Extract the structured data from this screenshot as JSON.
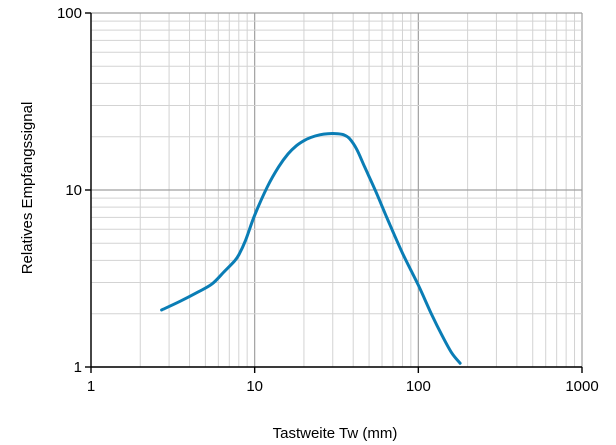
{
  "chart_data": {
    "type": "line",
    "title": "",
    "xlabel": "Tastweite Tw (mm)",
    "ylabel": "Relatives Empfangssignal",
    "x_scale": "log",
    "y_scale": "log",
    "xlim": [
      1,
      1000
    ],
    "ylim": [
      1,
      100
    ],
    "x_ticks": [
      {
        "value": 1,
        "label": "1"
      },
      {
        "value": 10,
        "label": "10"
      },
      {
        "value": 100,
        "label": "100"
      },
      {
        "value": 1000,
        "label": "1000"
      }
    ],
    "y_ticks": [
      {
        "value": 1,
        "label": "1"
      },
      {
        "value": 10,
        "label": "10"
      },
      {
        "value": 100,
        "label": "100"
      }
    ],
    "grid": true,
    "legend": "none",
    "colors": {
      "line": "#0a7db5",
      "grid_minor": "#d3d3d3",
      "grid_major": "#a0a0a0",
      "axis": "#000000"
    },
    "series": [
      {
        "x": [
          2.7,
          3.5,
          4.5,
          5.5,
          6.5,
          7.5,
          8.0,
          8.8,
          10,
          12,
          14,
          16,
          18,
          20,
          22,
          25,
          28,
          32,
          35,
          38,
          42,
          47,
          55,
          65,
          80,
          100,
          120,
          140,
          160,
          180
        ],
        "y": [
          2.1,
          2.35,
          2.65,
          2.95,
          3.45,
          3.95,
          4.3,
          5.2,
          7.2,
          10.5,
          13.5,
          16.0,
          17.8,
          19.0,
          19.8,
          20.5,
          20.8,
          20.8,
          20.5,
          19.5,
          17.0,
          13.5,
          9.8,
          6.8,
          4.4,
          2.9,
          2.0,
          1.5,
          1.2,
          1.05
        ]
      }
    ]
  }
}
